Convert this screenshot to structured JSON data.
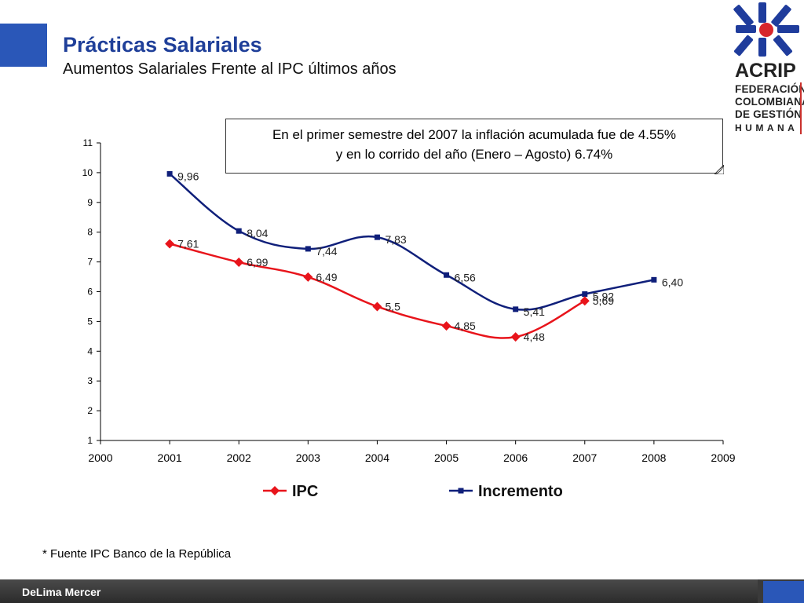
{
  "header": {
    "title": "Prácticas Salariales",
    "subtitle": "Aumentos Salariales Frente al IPC últimos años"
  },
  "logo": {
    "name": "ACRIP",
    "lines": [
      "FEDERACIÓN",
      "COLOMBIANA",
      "DE GESTIÓN",
      "HUMANA"
    ]
  },
  "callout": {
    "line1": "En el primer semestre del 2007 la inflación acumulada fue de 4.55%",
    "line2": "y en lo corrido del año (Enero – Agosto)  6.74%"
  },
  "source_note": "* Fuente IPC Banco de la República",
  "footer": {
    "brand": "DeLima Mercer"
  },
  "colors": {
    "ipc": "#e8141b",
    "incremento": "#0f1f7a",
    "title": "#1f3f99",
    "accent": "#2a57b8"
  },
  "chart_data": {
    "type": "line",
    "x_ticks": [
      "2000",
      "2001",
      "2002",
      "2003",
      "2004",
      "2005",
      "2006",
      "2007",
      "2008",
      "2009"
    ],
    "y_ticks": [
      "1",
      "2",
      "3",
      "4",
      "5",
      "6",
      "7",
      "8",
      "9",
      "10",
      "11"
    ],
    "xlim": [
      2000,
      2009
    ],
    "ylim": [
      1,
      11
    ],
    "grid": false,
    "legend_position": "bottom",
    "series": [
      {
        "name": "IPC",
        "marker": "diamond",
        "x": [
          2001,
          2002,
          2003,
          2004,
          2005,
          2006,
          2007
        ],
        "values": [
          7.61,
          6.99,
          6.49,
          5.5,
          4.85,
          4.48,
          5.69
        ],
        "labels": [
          "7,61",
          "6,99",
          "6,49",
          "5,5",
          "4,85",
          "4,48",
          "5,69"
        ]
      },
      {
        "name": "Incremento",
        "marker": "square",
        "x": [
          2001,
          2002,
          2003,
          2004,
          2005,
          2006,
          2007,
          2008
        ],
        "values": [
          9.96,
          8.04,
          7.44,
          7.83,
          6.56,
          5.41,
          5.92,
          6.4
        ],
        "labels": [
          "9,96",
          "8,04",
          "7,44",
          "7,83",
          "6,56",
          "5,41",
          "5,92",
          "6,40"
        ]
      }
    ]
  }
}
